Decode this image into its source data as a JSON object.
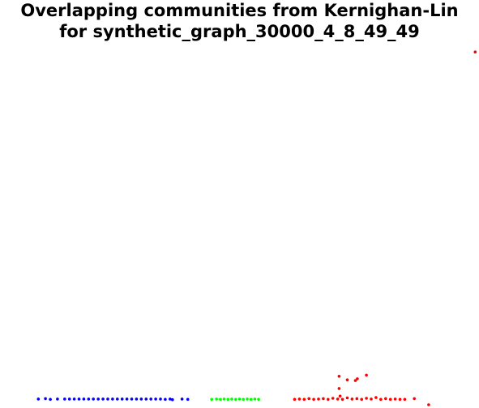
{
  "title": {
    "line1": "Overlapping communities from Kernighan-Lin",
    "line2": "for synthetic_graph_30000_4_8_49_49"
  },
  "chart_data": {
    "type": "scatter",
    "title": "Overlapping communities from Kernighan-Lin for synthetic_graph_30000_4_8_49_49",
    "xlabel": "",
    "ylabel": "",
    "grid": false,
    "legend": "none",
    "xlim": [
      0,
      100
    ],
    "ylim": [
      0,
      100
    ],
    "series": [
      {
        "color": "#0000ff",
        "points": [
          [
            8,
            2.5
          ],
          [
            9.5,
            2.6
          ],
          [
            10.5,
            2.4
          ],
          [
            12,
            2.5
          ],
          [
            13.5,
            2.5
          ],
          [
            14.5,
            2.5
          ],
          [
            15.5,
            2.5
          ],
          [
            16.5,
            2.5
          ],
          [
            17.5,
            2.5
          ],
          [
            18.5,
            2.5
          ],
          [
            19.5,
            2.5
          ],
          [
            20.5,
            2.5
          ],
          [
            21.5,
            2.5
          ],
          [
            22.5,
            2.5
          ],
          [
            23.5,
            2.5
          ],
          [
            24.5,
            2.5
          ],
          [
            25.5,
            2.5
          ],
          [
            26.5,
            2.5
          ],
          [
            27.5,
            2.5
          ],
          [
            28.5,
            2.5
          ],
          [
            29.5,
            2.5
          ],
          [
            30.5,
            2.5
          ],
          [
            31.5,
            2.5
          ],
          [
            32.5,
            2.5
          ],
          [
            33.5,
            2.5
          ],
          [
            34.5,
            2.4
          ],
          [
            35.5,
            2.5
          ],
          [
            36,
            2.3
          ],
          [
            38,
            2.5
          ],
          [
            39.2,
            2.4
          ]
        ]
      },
      {
        "color": "#00ff00",
        "points": [
          [
            44.2,
            2.4
          ],
          [
            45.2,
            2.5
          ],
          [
            46,
            2.4
          ],
          [
            46.8,
            2.5
          ],
          [
            47.6,
            2.4
          ],
          [
            48.4,
            2.5
          ],
          [
            49.2,
            2.4
          ],
          [
            50,
            2.5
          ],
          [
            50.8,
            2.4
          ],
          [
            51.6,
            2.5
          ],
          [
            52.4,
            2.4
          ],
          [
            53.2,
            2.5
          ],
          [
            54,
            2.4
          ]
        ]
      },
      {
        "color": "#ff0000",
        "points": [
          [
            61.5,
            2.4
          ],
          [
            62.5,
            2.5
          ],
          [
            63.5,
            2.4
          ],
          [
            64.5,
            2.6
          ],
          [
            65.5,
            2.4
          ],
          [
            66.5,
            2.5
          ],
          [
            67.5,
            2.6
          ],
          [
            68.5,
            2.4
          ],
          [
            69.5,
            2.7
          ],
          [
            70.5,
            2.5
          ],
          [
            71,
            3.3
          ],
          [
            71.5,
            2.4
          ],
          [
            72.5,
            2.8
          ],
          [
            73.5,
            2.5
          ],
          [
            74.5,
            2.6
          ],
          [
            75.5,
            2.4
          ],
          [
            76.5,
            2.7
          ],
          [
            77.5,
            2.5
          ],
          [
            78.5,
            2.9
          ],
          [
            79.5,
            2.4
          ],
          [
            80.5,
            2.6
          ],
          [
            81.5,
            2.4
          ],
          [
            82.5,
            2.5
          ],
          [
            83.5,
            2.4
          ],
          [
            84.5,
            2.4
          ],
          [
            86.5,
            2.6
          ],
          [
            70.8,
            8.8
          ],
          [
            72.5,
            7.8
          ],
          [
            74.2,
            7.6
          ],
          [
            74.6,
            8.1
          ],
          [
            76.5,
            9.1
          ],
          [
            70.8,
            5.4
          ],
          [
            89.5,
            0.9
          ],
          [
            99.2,
            98.6
          ]
        ]
      }
    ]
  }
}
